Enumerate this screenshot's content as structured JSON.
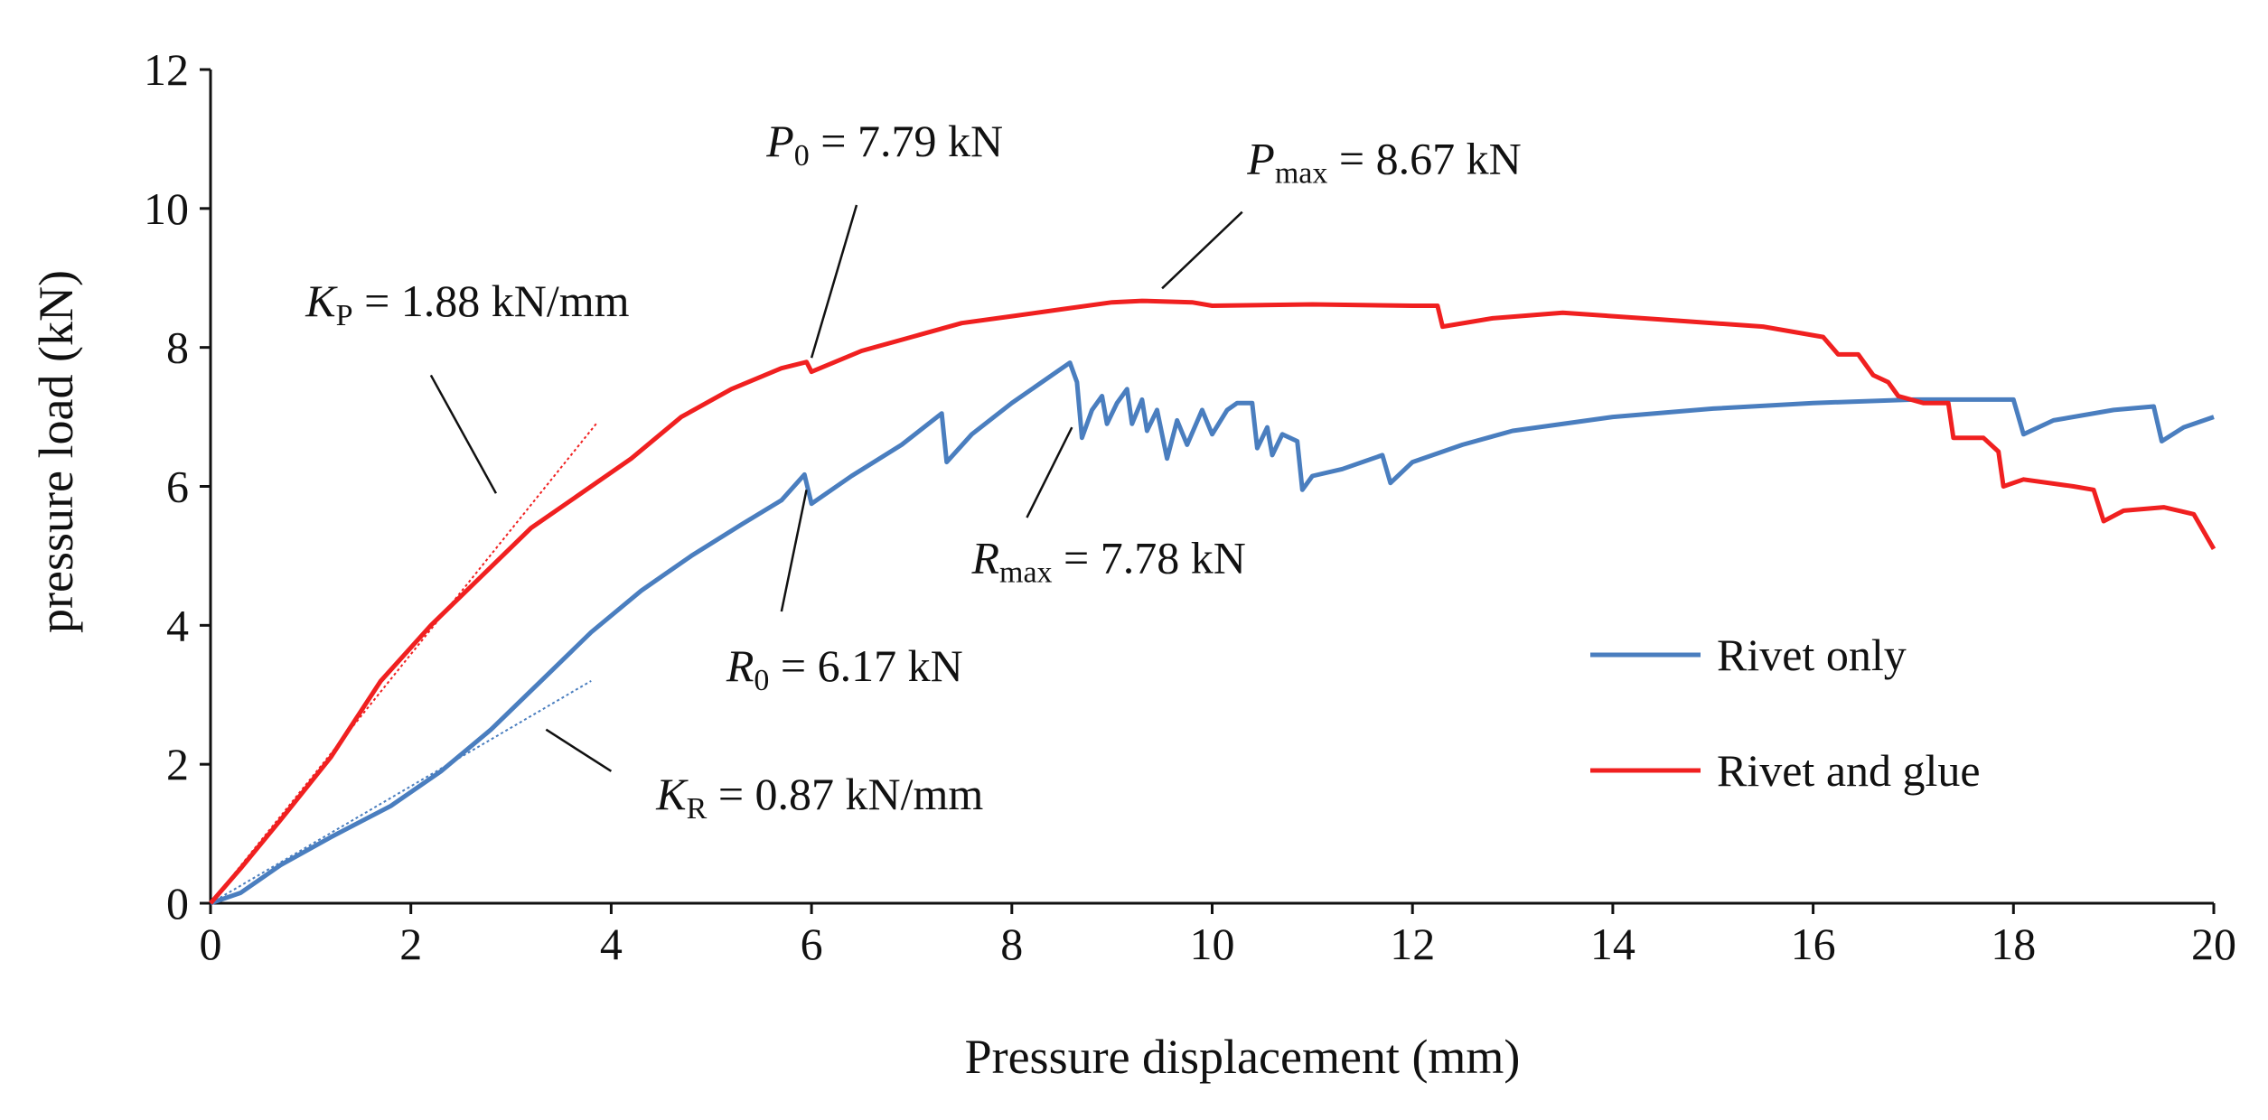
{
  "chart_data": {
    "type": "line",
    "xlabel": "Pressure displacement (mm)",
    "ylabel": "pressure load (kN)",
    "xlim": [
      0,
      20
    ],
    "ylim": [
      0,
      12
    ],
    "xticks": [
      0,
      2,
      4,
      6,
      8,
      10,
      12,
      14,
      16,
      18,
      20
    ],
    "yticks": [
      0,
      2,
      4,
      6,
      8,
      10,
      12
    ],
    "grid": false,
    "legend_position": "lower-right",
    "series": [
      {
        "name": "Rivet only",
        "color": "#4a7ebf",
        "points": [
          [
            0,
            0
          ],
          [
            0.3,
            0.15
          ],
          [
            0.7,
            0.55
          ],
          [
            1.2,
            0.95
          ],
          [
            1.8,
            1.4
          ],
          [
            2.3,
            1.9
          ],
          [
            2.8,
            2.5
          ],
          [
            3.3,
            3.2
          ],
          [
            3.8,
            3.9
          ],
          [
            4.3,
            4.5
          ],
          [
            4.8,
            5.0
          ],
          [
            5.3,
            5.45
          ],
          [
            5.7,
            5.8
          ],
          [
            5.93,
            6.17
          ],
          [
            6.0,
            5.75
          ],
          [
            6.4,
            6.15
          ],
          [
            6.9,
            6.6
          ],
          [
            7.3,
            7.05
          ],
          [
            7.35,
            6.35
          ],
          [
            7.6,
            6.75
          ],
          [
            8.0,
            7.2
          ],
          [
            8.5,
            7.7
          ],
          [
            8.58,
            7.78
          ],
          [
            8.65,
            7.5
          ],
          [
            8.7,
            6.7
          ],
          [
            8.8,
            7.1
          ],
          [
            8.9,
            7.3
          ],
          [
            8.95,
            6.9
          ],
          [
            9.05,
            7.2
          ],
          [
            9.15,
            7.4
          ],
          [
            9.2,
            6.9
          ],
          [
            9.3,
            7.25
          ],
          [
            9.35,
            6.8
          ],
          [
            9.45,
            7.1
          ],
          [
            9.55,
            6.4
          ],
          [
            9.65,
            6.95
          ],
          [
            9.75,
            6.6
          ],
          [
            9.9,
            7.1
          ],
          [
            10.0,
            6.75
          ],
          [
            10.15,
            7.1
          ],
          [
            10.25,
            7.2
          ],
          [
            10.4,
            7.2
          ],
          [
            10.45,
            6.55
          ],
          [
            10.55,
            6.85
          ],
          [
            10.6,
            6.45
          ],
          [
            10.7,
            6.75
          ],
          [
            10.85,
            6.65
          ],
          [
            10.9,
            5.95
          ],
          [
            11.0,
            6.15
          ],
          [
            11.3,
            6.25
          ],
          [
            11.7,
            6.45
          ],
          [
            11.78,
            6.05
          ],
          [
            12.0,
            6.35
          ],
          [
            12.5,
            6.6
          ],
          [
            13.0,
            6.8
          ],
          [
            14.0,
            7.0
          ],
          [
            15.0,
            7.12
          ],
          [
            16.0,
            7.2
          ],
          [
            17.0,
            7.25
          ],
          [
            18.0,
            7.25
          ],
          [
            18.1,
            6.75
          ],
          [
            18.4,
            6.95
          ],
          [
            19.0,
            7.1
          ],
          [
            19.4,
            7.15
          ],
          [
            19.48,
            6.65
          ],
          [
            19.7,
            6.85
          ],
          [
            20.0,
            7.0
          ]
        ]
      },
      {
        "name": "Rivet and glue",
        "color": "#f02020",
        "points": [
          [
            0,
            0
          ],
          [
            0.3,
            0.5
          ],
          [
            0.7,
            1.2
          ],
          [
            1.2,
            2.1
          ],
          [
            1.7,
            3.2
          ],
          [
            2.2,
            4.0
          ],
          [
            2.7,
            4.7
          ],
          [
            3.2,
            5.4
          ],
          [
            3.7,
            5.9
          ],
          [
            4.2,
            6.4
          ],
          [
            4.7,
            7.0
          ],
          [
            5.2,
            7.4
          ],
          [
            5.7,
            7.7
          ],
          [
            5.95,
            7.79
          ],
          [
            6.0,
            7.65
          ],
          [
            6.5,
            7.95
          ],
          [
            7.0,
            8.15
          ],
          [
            7.5,
            8.35
          ],
          [
            8.0,
            8.45
          ],
          [
            8.5,
            8.55
          ],
          [
            9.0,
            8.65
          ],
          [
            9.3,
            8.67
          ],
          [
            9.8,
            8.65
          ],
          [
            10.0,
            8.6
          ],
          [
            11.0,
            8.62
          ],
          [
            12.0,
            8.6
          ],
          [
            12.25,
            8.6
          ],
          [
            12.3,
            8.3
          ],
          [
            12.8,
            8.42
          ],
          [
            13.5,
            8.5
          ],
          [
            14.5,
            8.4
          ],
          [
            15.5,
            8.3
          ],
          [
            16.1,
            8.15
          ],
          [
            16.25,
            7.9
          ],
          [
            16.45,
            7.9
          ],
          [
            16.6,
            7.6
          ],
          [
            16.75,
            7.5
          ],
          [
            16.85,
            7.3
          ],
          [
            17.1,
            7.2
          ],
          [
            17.35,
            7.2
          ],
          [
            17.4,
            6.7
          ],
          [
            17.7,
            6.7
          ],
          [
            17.85,
            6.5
          ],
          [
            17.9,
            6.0
          ],
          [
            18.1,
            6.1
          ],
          [
            18.6,
            6.0
          ],
          [
            18.8,
            5.95
          ],
          [
            18.9,
            5.5
          ],
          [
            19.1,
            5.65
          ],
          [
            19.5,
            5.7
          ],
          [
            19.8,
            5.6
          ],
          [
            20.0,
            5.1
          ]
        ]
      }
    ],
    "tangent_lines": [
      {
        "name": "K_P tangent",
        "color": "#f02020",
        "from": [
          0,
          0
        ],
        "to": [
          3.85,
          6.9
        ]
      },
      {
        "name": "K_R tangent",
        "color": "#4a7ebf",
        "from": [
          0,
          0
        ],
        "to": [
          3.8,
          3.2
        ]
      }
    ],
    "annotations": [
      {
        "id": "kp",
        "sym": "K",
        "sub": "P",
        "rest": " = 1.88 kN/mm",
        "text_at": [
          0.95,
          8.45
        ],
        "line_from": [
          2.2,
          7.6
        ],
        "line_to": [
          2.85,
          5.9
        ]
      },
      {
        "id": "p0",
        "sym": "P",
        "sub": "0",
        "rest": " = 7.79 kN",
        "text_at": [
          5.55,
          10.75
        ],
        "line_from": [
          6.45,
          10.05
        ],
        "line_to": [
          6.0,
          7.85
        ]
      },
      {
        "id": "pmax",
        "sym": "P",
        "sub": "max",
        "rest": " = 8.67 kN",
        "text_at": [
          10.35,
          10.5
        ],
        "line_from": [
          10.3,
          9.95
        ],
        "line_to": [
          9.5,
          8.85
        ]
      },
      {
        "id": "rmax",
        "sym": "R",
        "sub": "max",
        "rest": " = 7.78 kN",
        "text_at": [
          7.6,
          4.75
        ],
        "line_from": [
          8.15,
          5.55
        ],
        "line_to": [
          8.6,
          6.85
        ]
      },
      {
        "id": "r0",
        "sym": "R",
        "sub": "0",
        "rest": " = 6.17 kN",
        "text_at": [
          5.15,
          3.2
        ],
        "line_from": [
          5.7,
          4.2
        ],
        "line_to": [
          5.95,
          5.95
        ]
      },
      {
        "id": "kr",
        "sym": "K",
        "sub": "R",
        "rest": " = 0.87 kN/mm",
        "text_at": [
          4.45,
          1.35
        ],
        "line_from": [
          4.0,
          1.9
        ],
        "line_to": [
          3.35,
          2.5
        ]
      }
    ]
  }
}
